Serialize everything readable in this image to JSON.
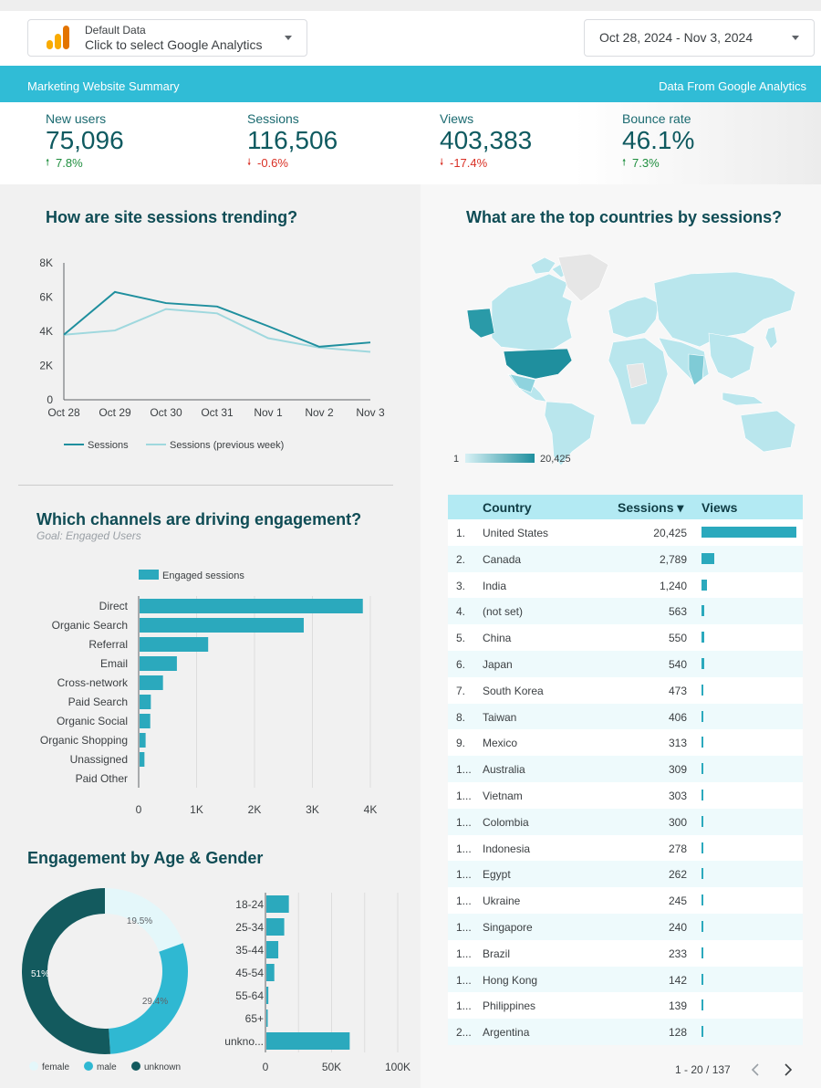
{
  "colors": {
    "accent": "#30bcd6",
    "bar": "#2ba9bd",
    "line_current": "#1f8f9e",
    "line_prev": "#9fd8de",
    "up": "#1e8e3e",
    "down": "#d93025"
  },
  "datasource": {
    "label": "Default Data",
    "selector_text": "Click to select Google Analytics"
  },
  "date_range": "Oct 28, 2024 - Nov 3, 2024",
  "banner": {
    "left": "Marketing Website Summary",
    "right": "Data From Google Analytics"
  },
  "kpis": [
    {
      "label": "New users",
      "value": "75,096",
      "delta": "7.8%",
      "arrow": "🠕",
      "direction": "up"
    },
    {
      "label": "Sessions",
      "value": "116,506",
      "delta": "-0.6%",
      "arrow": "🠗",
      "direction": "down"
    },
    {
      "label": "Views",
      "value": "403,383",
      "delta": "-17.4%",
      "arrow": "🠗",
      "direction": "down"
    },
    {
      "label": "Bounce rate",
      "value": "46.1%",
      "delta": "7.3%",
      "arrow": "🠕",
      "direction": "up"
    }
  ],
  "sessions_chart": {
    "title": "How are site sessions trending?",
    "y_ticks": [
      "0",
      "2K",
      "4K",
      "6K",
      "8K"
    ],
    "legend": [
      "Sessions",
      "Sessions (previous week)"
    ]
  },
  "channels_chart": {
    "title": "Which channels are driving engagement?",
    "goal": "Goal: Engaged Users",
    "legend": "Engaged sessions",
    "x_ticks": [
      "0",
      "1K",
      "2K",
      "3K",
      "4K"
    ]
  },
  "age_gender": {
    "title": "Engagement by Age & Gender",
    "legend": [
      "female",
      "male",
      "unknown"
    ],
    "labels": [
      "19.5%",
      "29.4%",
      "51%"
    ],
    "x_ticks": [
      "0",
      "50K",
      "100K"
    ]
  },
  "map": {
    "title": "What are the top countries by sessions?",
    "scale_min": "1",
    "scale_max": "20,425"
  },
  "table": {
    "headers": {
      "country": "Country",
      "sessions": "Sessions ▾",
      "views": "Views"
    },
    "rows": [
      {
        "idx": "1.",
        "country": "United States",
        "sessions": "20,425",
        "views": 20425
      },
      {
        "idx": "2.",
        "country": "Canada",
        "sessions": "2,789",
        "views": 2789
      },
      {
        "idx": "3.",
        "country": "India",
        "sessions": "1,240",
        "views": 1240
      },
      {
        "idx": "4.",
        "country": "(not set)",
        "sessions": "563",
        "views": 563
      },
      {
        "idx": "5.",
        "country": "China",
        "sessions": "550",
        "views": 550
      },
      {
        "idx": "6.",
        "country": "Japan",
        "sessions": "540",
        "views": 540
      },
      {
        "idx": "7.",
        "country": "South Korea",
        "sessions": "473",
        "views": 473
      },
      {
        "idx": "8.",
        "country": "Taiwan",
        "sessions": "406",
        "views": 406
      },
      {
        "idx": "9.",
        "country": "Mexico",
        "sessions": "313",
        "views": 313
      },
      {
        "idx": "1...",
        "country": "Australia",
        "sessions": "309",
        "views": 309
      },
      {
        "idx": "1...",
        "country": "Vietnam",
        "sessions": "303",
        "views": 303
      },
      {
        "idx": "1...",
        "country": "Colombia",
        "sessions": "300",
        "views": 300
      },
      {
        "idx": "1...",
        "country": "Indonesia",
        "sessions": "278",
        "views": 278
      },
      {
        "idx": "1...",
        "country": "Egypt",
        "sessions": "262",
        "views": 262
      },
      {
        "idx": "1...",
        "country": "Ukraine",
        "sessions": "245",
        "views": 245
      },
      {
        "idx": "1...",
        "country": "Singapore",
        "sessions": "240",
        "views": 240
      },
      {
        "idx": "1...",
        "country": "Brazil",
        "sessions": "233",
        "views": 233
      },
      {
        "idx": "1...",
        "country": "Hong Kong",
        "sessions": "142",
        "views": 142
      },
      {
        "idx": "1...",
        "country": "Philippines",
        "sessions": "139",
        "views": 139
      },
      {
        "idx": "2...",
        "country": "Argentina",
        "sessions": "128",
        "views": 128
      }
    ],
    "pagination": "1 - 20 / 137"
  },
  "chart_data": [
    {
      "type": "line",
      "title": "How are site sessions trending?",
      "x": [
        "Oct 28",
        "Oct 29",
        "Oct 30",
        "Oct 31",
        "Nov 1",
        "Nov 2",
        "Nov 3"
      ],
      "series": [
        {
          "name": "Sessions",
          "values": [
            3800,
            6300,
            5650,
            5450,
            4300,
            3100,
            3350
          ]
        },
        {
          "name": "Sessions (previous week)",
          "values": [
            3800,
            4050,
            5300,
            5050,
            3600,
            3050,
            2800
          ]
        }
      ],
      "ylim": [
        0,
        8000
      ]
    },
    {
      "type": "bar",
      "title": "Which channels are driving engagement?",
      "categories": [
        "Direct",
        "Organic Search",
        "Referral",
        "Email",
        "Cross-network",
        "Paid Search",
        "Organic Social",
        "Organic Shopping",
        "Unassigned",
        "Paid Other"
      ],
      "series": [
        {
          "name": "Engaged sessions",
          "values": [
            3870,
            2850,
            1200,
            660,
            420,
            210,
            200,
            120,
            100,
            5
          ]
        }
      ],
      "xlim": [
        0,
        4000
      ]
    },
    {
      "type": "pie",
      "title": "Engagement by Age & Gender",
      "categories": [
        "female",
        "male",
        "unknown"
      ],
      "values": [
        19.5,
        29.4,
        51
      ]
    },
    {
      "type": "bar",
      "title": "Engagement by Age",
      "categories": [
        "18-24",
        "25-34",
        "35-44",
        "45-54",
        "55-64",
        "65+",
        "unkno..."
      ],
      "values": [
        17000,
        13500,
        9000,
        6000,
        1500,
        1000,
        63000
      ],
      "xlim": [
        0,
        100000
      ]
    }
  ]
}
